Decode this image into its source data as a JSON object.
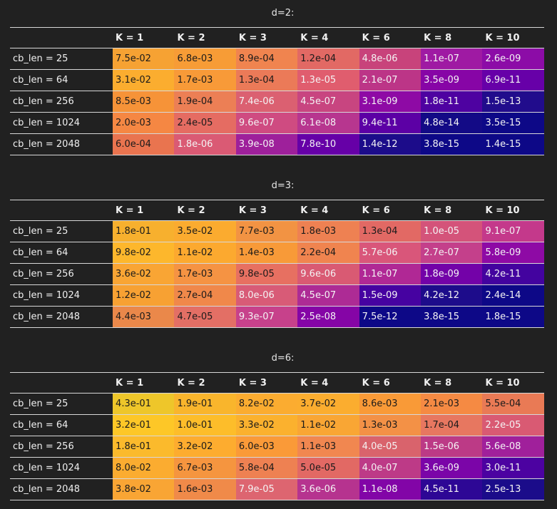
{
  "columns": [
    "K = 1",
    "K = 2",
    "K = 3",
    "K = 4",
    "K = 6",
    "K = 8",
    "K = 10"
  ],
  "tables": [
    {
      "caption": "d=2:",
      "rows": [
        {
          "label": "cb_len = 25",
          "cells": [
            "7.5e-02",
            "6.8e-03",
            "8.9e-04",
            "1.2e-04",
            "4.8e-06",
            "1.1e-07",
            "2.6e-09"
          ]
        },
        {
          "label": "cb_len = 64",
          "cells": [
            "3.1e-02",
            "1.7e-03",
            "1.3e-04",
            "1.3e-05",
            "2.1e-07",
            "3.5e-09",
            "6.9e-11"
          ]
        },
        {
          "label": "cb_len = 256",
          "cells": [
            "8.5e-03",
            "1.9e-04",
            "7.4e-06",
            "4.5e-07",
            "3.1e-09",
            "1.8e-11",
            "1.5e-13"
          ]
        },
        {
          "label": "cb_len = 1024",
          "cells": [
            "2.0e-03",
            "2.4e-05",
            "9.6e-07",
            "6.1e-08",
            "9.4e-11",
            "4.8e-14",
            "3.5e-15"
          ]
        },
        {
          "label": "cb_len = 2048",
          "cells": [
            "6.0e-04",
            "1.8e-06",
            "3.9e-08",
            "7.8e-10",
            "1.4e-12",
            "3.8e-15",
            "1.4e-15"
          ]
        }
      ],
      "colors": [
        [
          "#f6a233",
          "#f79c36",
          "#f0844f",
          "#e26964",
          "#c8437b",
          "#9f1aa3",
          "#8c0ca7"
        ],
        [
          "#fbad2f",
          "#f89a38",
          "#eb7a58",
          "#e05d6e",
          "#bc3587",
          "#8705a6",
          "#6700a8"
        ],
        [
          "#f69338",
          "#ec7f55",
          "#db6071",
          "#c84580",
          "#8e0aa5",
          "#4e02a1",
          "#210c8c"
        ],
        [
          "#f58743",
          "#e56c62",
          "#cf4b81",
          "#b7368f",
          "#5c00a5",
          "#130a86",
          "#0d0887"
        ],
        [
          "#e9744f",
          "#da5a74",
          "#9e209b",
          "#6600a7",
          "#1c0c8a",
          "#0d0887",
          "#0d0887"
        ]
      ]
    },
    {
      "caption": "d=3:",
      "rows": [
        {
          "label": "cb_len = 25",
          "cells": [
            "1.8e-01",
            "3.5e-02",
            "7.7e-03",
            "1.8e-03",
            "1.3e-04",
            "1.0e-05",
            "9.1e-07"
          ]
        },
        {
          "label": "cb_len = 64",
          "cells": [
            "9.8e-02",
            "1.1e-02",
            "1.4e-03",
            "2.2e-04",
            "5.7e-06",
            "2.7e-07",
            "5.8e-09"
          ]
        },
        {
          "label": "cb_len = 256",
          "cells": [
            "3.6e-02",
            "1.7e-03",
            "9.8e-05",
            "9.6e-06",
            "1.1e-07",
            "1.8e-09",
            "4.2e-11"
          ]
        },
        {
          "label": "cb_len = 1024",
          "cells": [
            "1.2e-02",
            "2.7e-04",
            "8.0e-06",
            "4.5e-07",
            "1.5e-09",
            "4.2e-12",
            "2.4e-14"
          ]
        },
        {
          "label": "cb_len = 2048",
          "cells": [
            "4.4e-03",
            "4.7e-05",
            "9.3e-07",
            "2.5e-08",
            "7.5e-12",
            "3.8e-15",
            "1.8e-15"
          ]
        }
      ],
      "colors": [
        [
          "#f7b02e",
          "#fbab2f",
          "#f29343",
          "#ee8152",
          "#e26964",
          "#d4537a",
          "#c4398b"
        ],
        [
          "#fdb72c",
          "#fca92f",
          "#f89a38",
          "#f0844f",
          "#d9567a",
          "#c4408b",
          "#8e0aa5"
        ],
        [
          "#f9a534",
          "#f59343",
          "#e77061",
          "#d95a73",
          "#b02895",
          "#7302a8",
          "#43039f"
        ],
        [
          "#f7a133",
          "#f0884a",
          "#d85b77",
          "#ad2b95",
          "#4602a1",
          "#1d0c8b",
          "#0d0887"
        ],
        [
          "#ea884a",
          "#e36f65",
          "#c7418b",
          "#8505a6",
          "#0d0887",
          "#0d0887",
          "#0d0887"
        ]
      ]
    },
    {
      "caption": "d=6:",
      "rows": [
        {
          "label": "cb_len = 25",
          "cells": [
            "4.3e-01",
            "1.9e-01",
            "8.2e-02",
            "3.7e-02",
            "8.6e-03",
            "2.1e-03",
            "5.5e-04"
          ]
        },
        {
          "label": "cb_len = 64",
          "cells": [
            "3.2e-01",
            "1.0e-01",
            "3.3e-02",
            "1.1e-02",
            "1.3e-03",
            "1.7e-04",
            "2.2e-05"
          ]
        },
        {
          "label": "cb_len = 256",
          "cells": [
            "1.8e-01",
            "3.2e-02",
            "6.0e-03",
            "1.1e-03",
            "4.0e-05",
            "1.5e-06",
            "5.6e-08"
          ]
        },
        {
          "label": "cb_len = 1024",
          "cells": [
            "8.0e-02",
            "6.7e-03",
            "5.8e-04",
            "5.0e-05",
            "4.0e-07",
            "3.6e-09",
            "3.0e-11"
          ]
        },
        {
          "label": "cb_len = 2048",
          "cells": [
            "3.8e-02",
            "1.6e-03",
            "7.9e-05",
            "3.6e-06",
            "1.1e-08",
            "4.5e-11",
            "2.5e-13"
          ]
        }
      ],
      "colors": [
        [
          "#eec62a",
          "#f9b52c",
          "#fbac30",
          "#fbad2f",
          "#f99a37",
          "#f58a43",
          "#e97a55"
        ],
        [
          "#fdc727",
          "#fdbd2a",
          "#fbb12e",
          "#f9a634",
          "#f39146",
          "#e77760",
          "#d95a73"
        ],
        [
          "#fbba2c",
          "#fdac2f",
          "#fa9a38",
          "#f18750",
          "#d9636c",
          "#bc3a86",
          "#a0209b"
        ],
        [
          "#fbac30",
          "#f5953f",
          "#ee8152",
          "#e26964",
          "#bd3a87",
          "#7b05a8",
          "#4c02a1"
        ],
        [
          "#f9a534",
          "#f08a49",
          "#dd6570",
          "#b6338f",
          "#8205a7",
          "#2d0795",
          "#1b0c8a"
        ]
      ]
    }
  ]
}
